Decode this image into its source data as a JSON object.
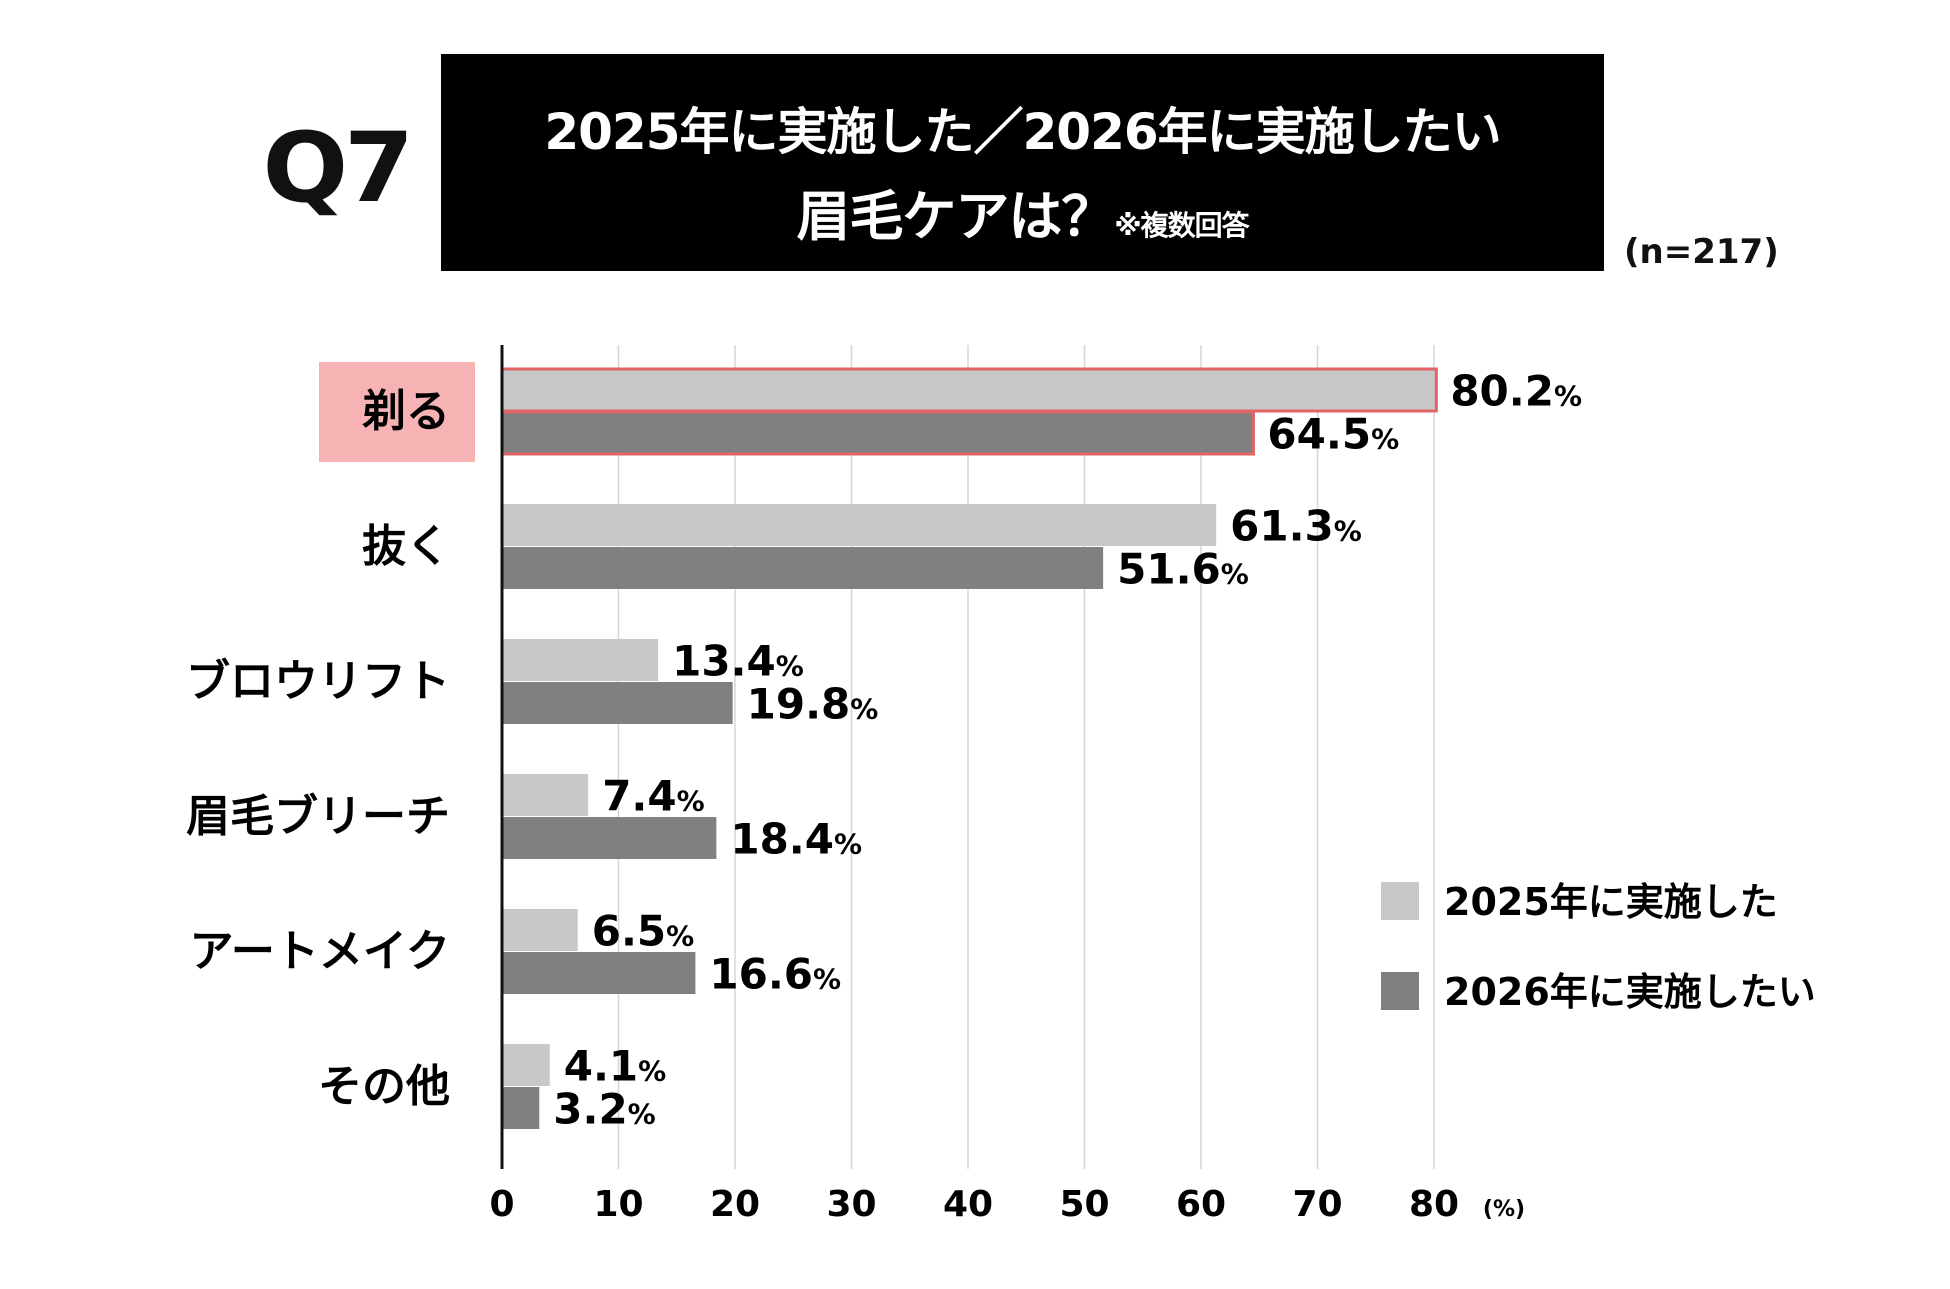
{
  "header": {
    "question": "Q7",
    "title_line1": "2025年に実施した／2026年に実施したい",
    "title_line2": "眉毛ケアは？",
    "note": "※複数回答",
    "sample": "(n=217)"
  },
  "chart_data": {
    "type": "bar",
    "orientation": "horizontal",
    "title": "2025年に実施した／2026年に実施したい眉毛ケアは？",
    "categories": [
      "剃る",
      "抜く",
      "ブロウリフト",
      "眉毛ブリーチ",
      "アートメイク",
      "その他"
    ],
    "series": [
      {
        "name": "2025年に実施した",
        "values": [
          80.2,
          61.3,
          13.4,
          7.4,
          6.5,
          4.1
        ],
        "color": "#c8c8c8"
      },
      {
        "name": "2026年に実施したい",
        "values": [
          64.5,
          51.6,
          19.8,
          18.4,
          16.6,
          3.2
        ],
        "color": "#808080"
      }
    ],
    "xlim": [
      0,
      80
    ],
    "xticks": [
      0,
      10,
      20,
      30,
      40,
      50,
      60,
      70,
      80
    ],
    "xunit": "(%)",
    "value_suffix": "%",
    "grid": true,
    "legend": "right",
    "highlight": {
      "category": "剃る",
      "fill": "#f7b3b3",
      "outline": "#e06666"
    }
  }
}
